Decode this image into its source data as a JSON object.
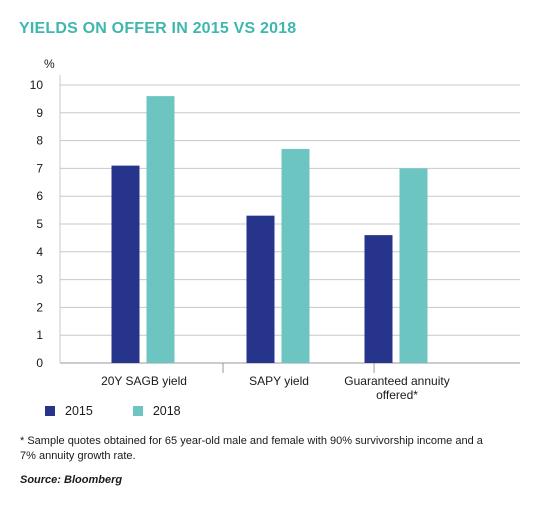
{
  "chart_data": {
    "type": "bar",
    "title": "YIELDS ON OFFER IN 2015 VS 2018",
    "ylabel": "%",
    "categories": [
      "20Y SAGB yield",
      "SAPY yield",
      "Guaranteed annuity offered*"
    ],
    "series": [
      {
        "name": "2015",
        "values": [
          7.1,
          5.3,
          4.6
        ],
        "color": "#27348b"
      },
      {
        "name": "2018",
        "values": [
          9.6,
          7.7,
          7.0
        ],
        "color": "#6dc5c2"
      }
    ],
    "ylim": [
      0,
      10
    ],
    "yticks": [
      "0",
      "1",
      "2",
      "3",
      "4",
      "5",
      "6",
      "7",
      "8",
      "9",
      "10"
    ],
    "grid": true,
    "legend_position": "bottom-left"
  },
  "footnote": "* Sample quotes obtained for 65 year-old male and female with 90% survivorship income and a 7% annuity growth rate.",
  "source": "Source: Bloomberg"
}
